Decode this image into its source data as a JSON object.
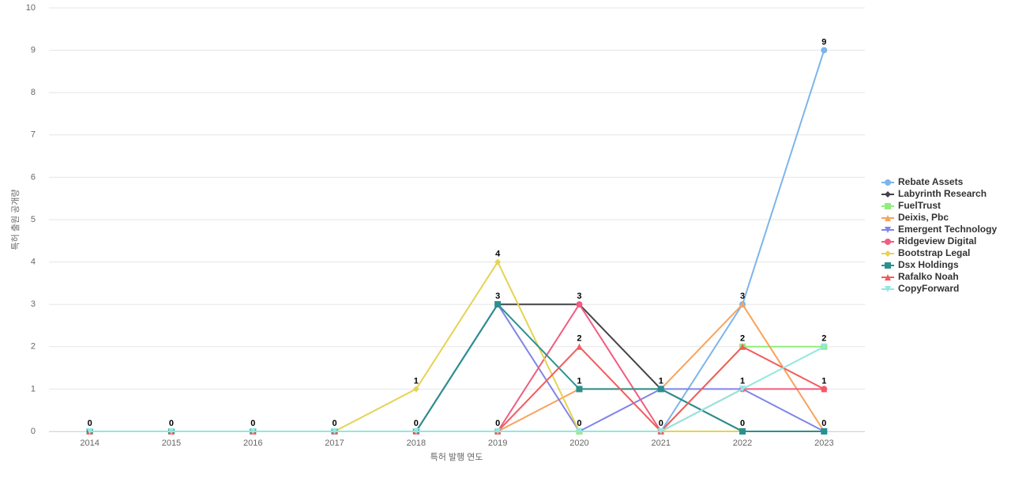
{
  "chart_data": {
    "type": "line",
    "x_label": "특허 발행 연도",
    "y_label": "특허 출원 공개량",
    "categories": [
      "2014",
      "2015",
      "2016",
      "2017",
      "2018",
      "2019",
      "2020",
      "2021",
      "2022",
      "2023"
    ],
    "ylim": [
      0,
      10
    ],
    "yticks": [
      0,
      1,
      2,
      3,
      4,
      5,
      6,
      7,
      8,
      9,
      10
    ],
    "grid": true,
    "legend": "right",
    "series": [
      {
        "name": "Rebate Assets",
        "color": "#7cb5ec",
        "symbol": "circle",
        "values": [
          0,
          0,
          0,
          0,
          0,
          0,
          0,
          0,
          3,
          9
        ]
      },
      {
        "name": "Labyrinth Research",
        "color": "#434348",
        "symbol": "diamond",
        "values": [
          0,
          0,
          0,
          0,
          0,
          3,
          3,
          1,
          0,
          0
        ]
      },
      {
        "name": "FuelTrust",
        "color": "#90ed7d",
        "symbol": "square",
        "values": [
          0,
          0,
          0,
          0,
          0,
          0,
          0,
          0,
          2,
          2
        ]
      },
      {
        "name": "Deixis, Pbc",
        "color": "#f7a35c",
        "symbol": "triangle",
        "values": [
          0,
          0,
          0,
          0,
          0,
          0,
          1,
          1,
          3,
          0
        ]
      },
      {
        "name": "Emergent Technology",
        "color": "#8085e9",
        "symbol": "triangle-down",
        "values": [
          0,
          0,
          0,
          0,
          0,
          3,
          0,
          1,
          1,
          0
        ]
      },
      {
        "name": "Ridgeview Digital",
        "color": "#f15c80",
        "symbol": "circle",
        "values": [
          0,
          0,
          0,
          0,
          0,
          0,
          3,
          0,
          1,
          1
        ]
      },
      {
        "name": "Bootstrap Legal",
        "color": "#e4d354",
        "symbol": "diamond",
        "values": [
          0,
          0,
          0,
          0,
          1,
          4,
          0,
          0,
          0,
          0
        ]
      },
      {
        "name": "Dsx Holdings",
        "color": "#2b908f",
        "symbol": "square",
        "values": [
          0,
          0,
          0,
          0,
          0,
          3,
          1,
          1,
          0,
          0
        ]
      },
      {
        "name": "Rafalko Noah",
        "color": "#f45b5b",
        "symbol": "triangle",
        "values": [
          0,
          0,
          0,
          0,
          0,
          0,
          2,
          0,
          2,
          1
        ]
      },
      {
        "name": "CopyForward",
        "color": "#91e8e1",
        "symbol": "triangle-down",
        "values": [
          0,
          0,
          0,
          0,
          0,
          0,
          0,
          0,
          1,
          2
        ]
      }
    ]
  }
}
